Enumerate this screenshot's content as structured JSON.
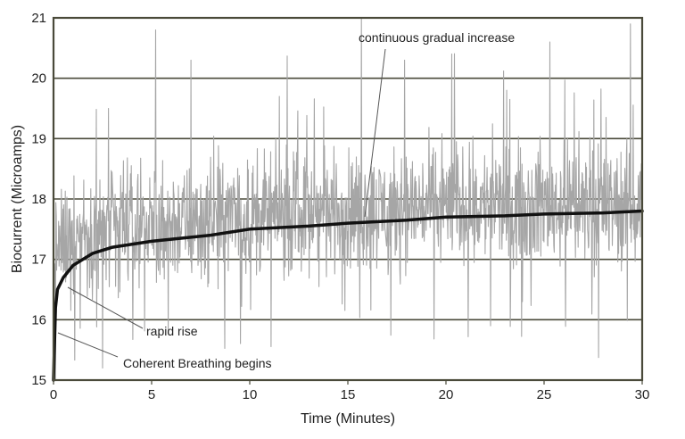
{
  "chart_data": {
    "type": "line",
    "xlabel": "Time (Minutes)",
    "ylabel": "Biocurrent (Microamps)",
    "xlim": [
      0,
      30
    ],
    "ylim": [
      15,
      21
    ],
    "x_ticks": [
      0,
      5,
      10,
      15,
      20,
      25,
      30
    ],
    "y_ticks": [
      15,
      16,
      17,
      18,
      19,
      20,
      21
    ],
    "grid": "horizontal",
    "series": [
      {
        "role": "raw signal (noisy, gray)",
        "color": "#a6a6a6",
        "band_center": [
          [
            0,
            17.1
          ],
          [
            1,
            17.4
          ],
          [
            3,
            17.5
          ],
          [
            5,
            17.6
          ],
          [
            8,
            17.6
          ],
          [
            10,
            17.7
          ],
          [
            15,
            17.8
          ],
          [
            20,
            17.9
          ],
          [
            25,
            17.9
          ],
          [
            30,
            17.9
          ]
        ],
        "band_halfwidth": 1.2,
        "spikes": [
          [
            5.2,
            20.8
          ],
          [
            7.0,
            20.3
          ],
          [
            15.7,
            21.0
          ],
          [
            17.9,
            20.3
          ],
          [
            20.3,
            20.4
          ],
          [
            25.3,
            20.6
          ],
          [
            29.4,
            20.9
          ],
          [
            2.8,
            19.5
          ],
          [
            11.5,
            19.7
          ],
          [
            23.1,
            19.8
          ],
          [
            2.5,
            15.2
          ],
          [
            0.1,
            15.0
          ]
        ]
      },
      {
        "role": "trend (smooth, black)",
        "color": "#111111",
        "points": [
          [
            0,
            15.0
          ],
          [
            0.1,
            16.2
          ],
          [
            0.2,
            16.5
          ],
          [
            0.5,
            16.7
          ],
          [
            1,
            16.9
          ],
          [
            2,
            17.1
          ],
          [
            3,
            17.2
          ],
          [
            5,
            17.3
          ],
          [
            8,
            17.4
          ],
          [
            10,
            17.5
          ],
          [
            13,
            17.55
          ],
          [
            15,
            17.6
          ],
          [
            18,
            17.65
          ],
          [
            20,
            17.7
          ],
          [
            23,
            17.72
          ],
          [
            25,
            17.75
          ],
          [
            28,
            17.77
          ],
          [
            30,
            17.8
          ]
        ]
      }
    ],
    "annotations": [
      {
        "text": "continuous gradual increase",
        "target": [
          15.9,
          17.6
        ]
      },
      {
        "text": "rapid rise",
        "target": [
          0.6,
          16.5
        ]
      },
      {
        "text": "Coherent Breathing begins",
        "target": [
          0.2,
          15.7
        ]
      }
    ]
  }
}
